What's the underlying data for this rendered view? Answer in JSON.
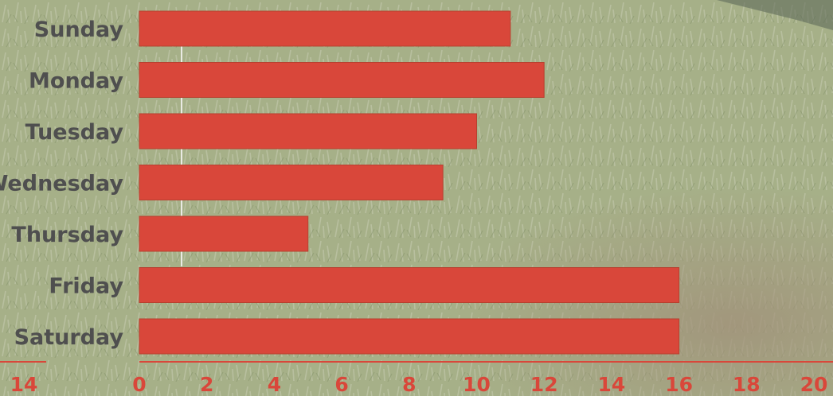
{
  "chart_data": {
    "type": "bar",
    "orientation": "horizontal",
    "categories": [
      "Sunday",
      "Monday",
      "Tuesday",
      "Wednesday",
      "Thursday",
      "Friday",
      "Saturday"
    ],
    "values": [
      11,
      12,
      10,
      9,
      5,
      16,
      16
    ],
    "xlim": [
      0,
      20
    ],
    "x_ticks": [
      0,
      2,
      4,
      6,
      8,
      10,
      12,
      14,
      16,
      18,
      20
    ],
    "extra_axis_label": "14",
    "title": "",
    "xlabel": "",
    "ylabel": "",
    "grid": false,
    "legend": "none",
    "colors": {
      "bar": "#d9473a",
      "bar_edge": "#b8402f",
      "axis": "#d9473a",
      "tick_text": "#d9473a",
      "category_text": "#4f4f4f",
      "background_grass": "#a3ad84"
    }
  }
}
